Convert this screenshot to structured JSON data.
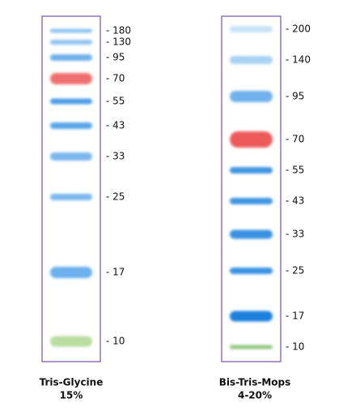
{
  "lanes": [
    {
      "markers": [
        "- 180",
        "- 130",
        "- 95",
        "- 70",
        "- 55",
        "- 43",
        "- 33",
        "- 25",
        "- 17",
        "- 10"
      ],
      "caption": [
        "Tris-Glycine",
        "15%"
      ]
    },
    {
      "markers": [
        "- 200",
        "- 140",
        "- 95",
        "- 70",
        "- 55",
        "- 43",
        "- 33",
        "- 25",
        "- 17",
        "- 10"
      ],
      "caption": [
        "Bis-Tris-Mops",
        "4-20%"
      ]
    }
  ]
}
